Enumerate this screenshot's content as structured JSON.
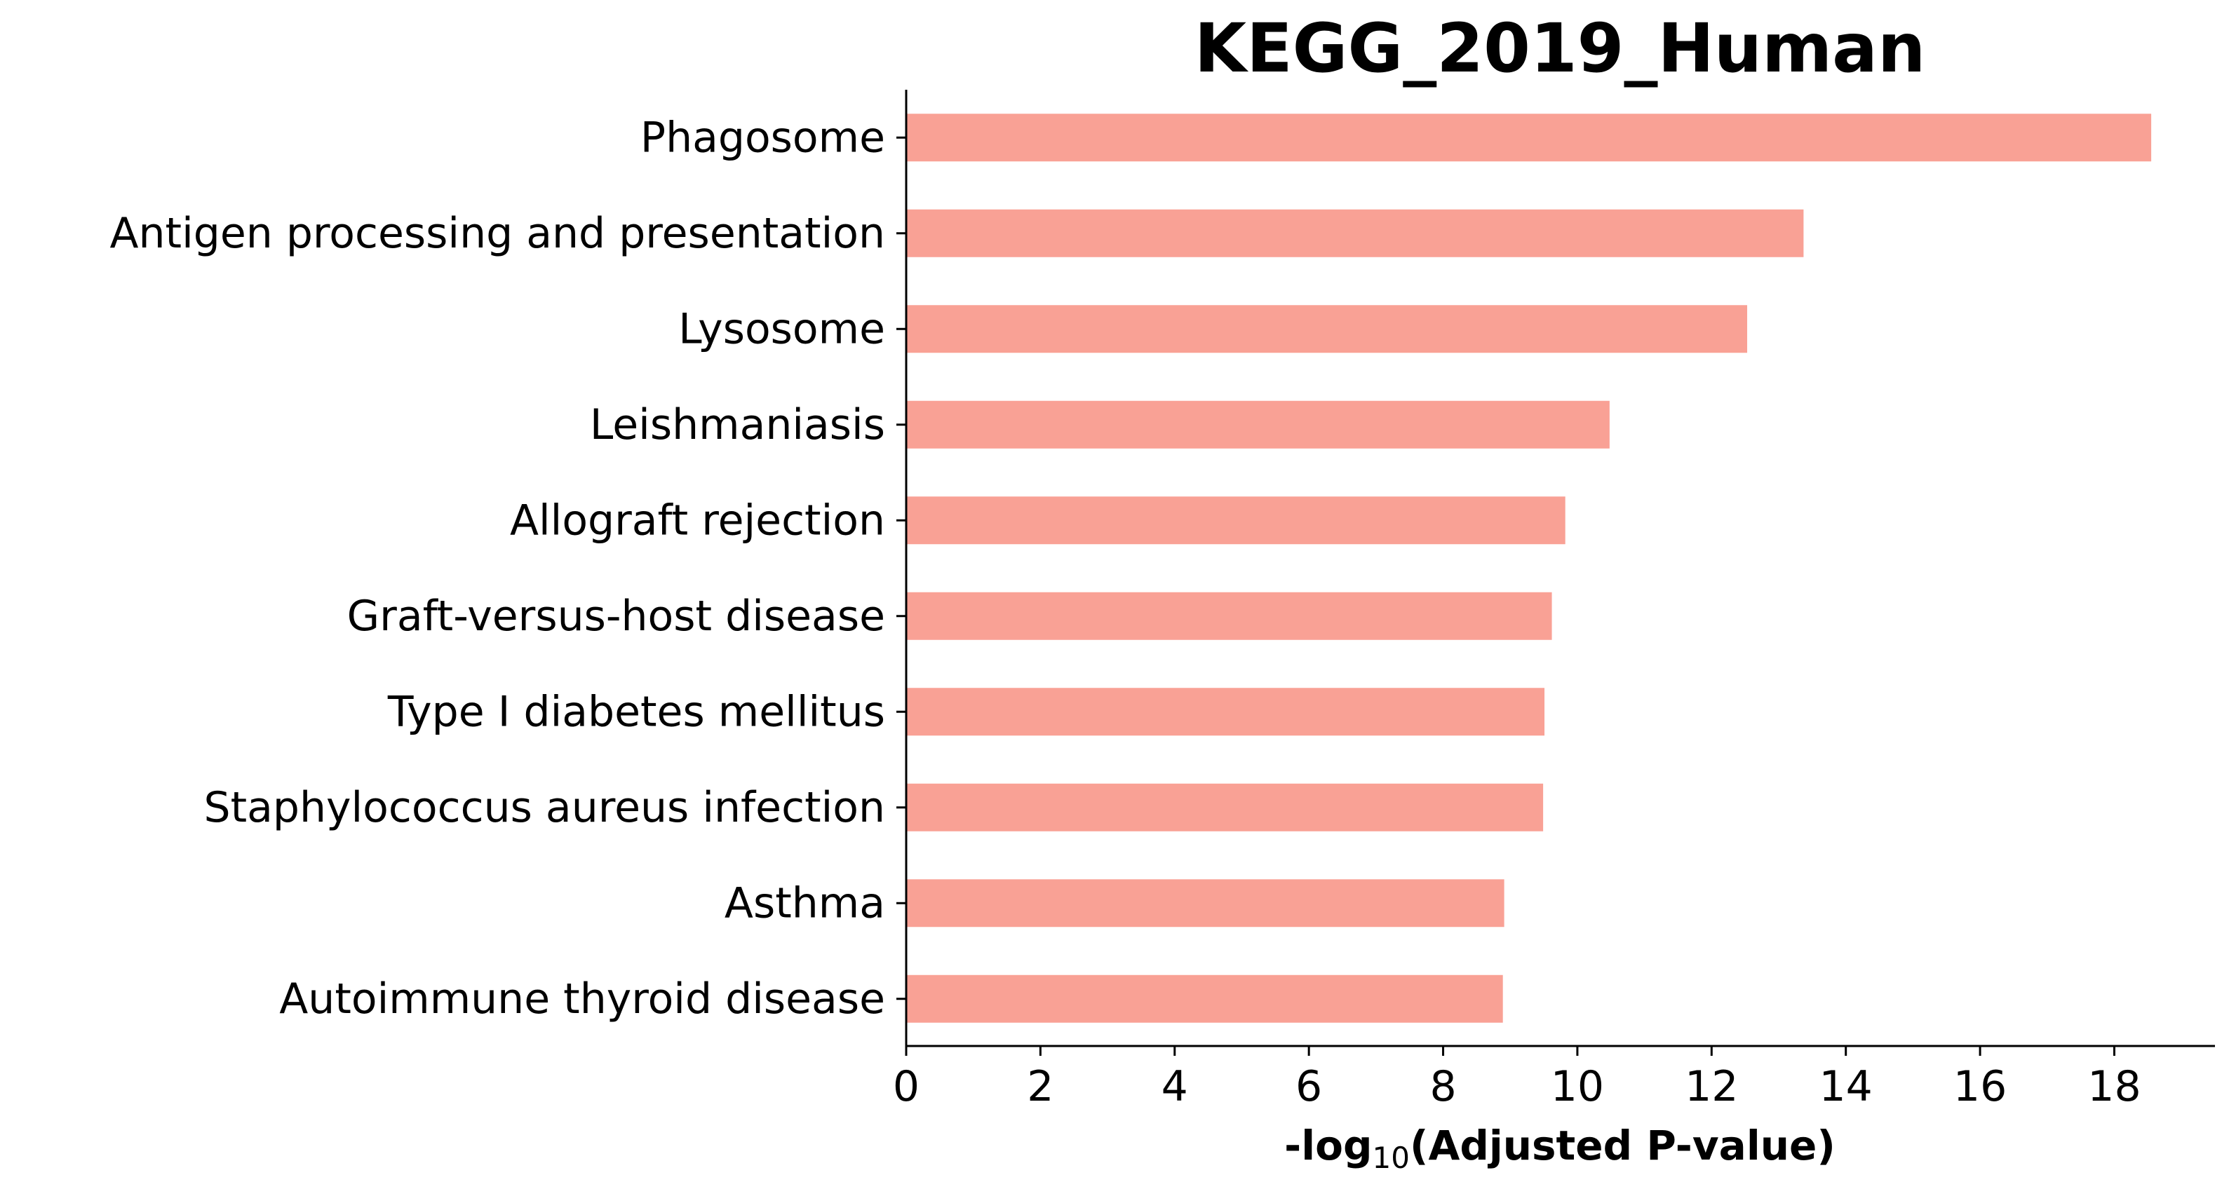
{
  "chart_data": {
    "type": "bar",
    "orientation": "horizontal",
    "title": "KEGG_2019_Human",
    "xlabel_prefix": "-log",
    "xlabel_subscript": "10",
    "xlabel_suffix": "(Adjusted P-value)",
    "ylabel": "",
    "categories": [
      "Phagosome",
      "Antigen processing and presentation",
      "Lysosome",
      "Leishmaniasis",
      "Allograft rejection",
      "Graft-versus-host disease",
      "Type I diabetes mellitus",
      "Staphylococcus aureus infection",
      "Asthma",
      "Autoimmune thyroid disease"
    ],
    "values": [
      18.55,
      13.37,
      12.53,
      10.48,
      9.82,
      9.62,
      9.51,
      9.49,
      8.91,
      8.89
    ],
    "xlim": [
      0,
      19.5
    ],
    "xticks": [
      "0",
      "2",
      "4",
      "6",
      "8",
      "10",
      "12",
      "14",
      "16",
      "18"
    ],
    "bar_color": "#f9a195",
    "grid": false,
    "legend": "none"
  }
}
